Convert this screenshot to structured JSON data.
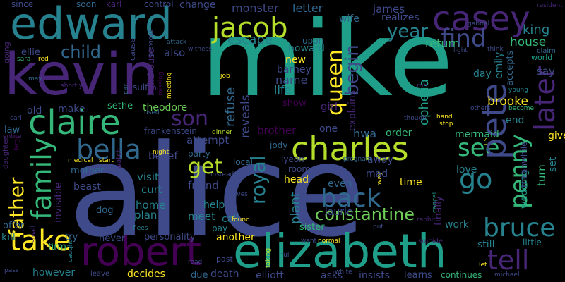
{
  "palette": {
    "deep_purple": "#440154",
    "purple": "#482677",
    "indigo": "#3e4a89",
    "blue": "#31688e",
    "teal": "#26828e",
    "green_teal": "#1f9e89",
    "green": "#35b779",
    "lime": "#6ece58",
    "yellow_green": "#b5de2b",
    "yellow": "#fde725"
  },
  "words": {
    "alice": "alice",
    "mike": "mike",
    "kevin": "kevin",
    "edward": "edward",
    "elizabeth": "elizabeth",
    "robert": "robert",
    "casey": "casey",
    "jacob": "jacob",
    "charles": "charles",
    "claire": "claire",
    "family": "family",
    "pete": "pete",
    "bella": "bella",
    "father": "father",
    "penny": "penny",
    "later": "later",
    "bruce": "bruce",
    "tell": "tell",
    "find": "find",
    "take": "take",
    "see": "see",
    "go": "go",
    "back": "back",
    "queen": "queen",
    "begin": "begin",
    "year": "year",
    "son": "son",
    "royal": "royal",
    "get": "get",
    "child": "child",
    "king": "king",
    "house": "house",
    "constantine": "constantine",
    "escape": "escape",
    "monster": "monster",
    "letter": "letter",
    "james": "james",
    "ophelia": "ophelia",
    "brooke": "brooke",
    "return": "return",
    "realizes": "realizes",
    "since": "since",
    "soon": "soon",
    "karl": "karl",
    "control": "control",
    "change": "change",
    "new": "new",
    "howard": "howard",
    "barney": "barney",
    "name": "name",
    "life": "life",
    "reveals": "reveals",
    "refuse": "refuse",
    "sethe": "sethe",
    "theodore": "theodore",
    "make": "make",
    "old": "old",
    "frankenstein": "frankenstein",
    "brother": "brother",
    "one": "one",
    "hwa": "hwa",
    "order": "order",
    "mermaid": "mermaid",
    "girl": "girl",
    "show": "show",
    "explains": "explains",
    "belief": "belief",
    "attempt": "attempt",
    "jody": "jody",
    "curt": "curt",
    "home": "home",
    "plan": "plan",
    "visit": "visit",
    "party": "party",
    "friend": "friend",
    "help": "help",
    "meet": "meet",
    "call": "call",
    "local": "local",
    "lyeon": "lyeon",
    "room": "room",
    "head": "head",
    "even": "even",
    "plant": "plant",
    "laurie": "laurie",
    "mad": "mad",
    "away": "away",
    "time": "time",
    "love": "love",
    "work": "work",
    "still": "still",
    "little": "little",
    "another": "another",
    "personality": "personality",
    "never": "never",
    "try": "try",
    "firm": "firm",
    "kill": "kill",
    "however": "however",
    "decides": "decides",
    "death": "death",
    "elliott": "elliott",
    "insists": "insists",
    "learns": "learns",
    "continues": "continues",
    "asks": "asks",
    "due": "due",
    "past": "past",
    "sister": "sister",
    "beast": "beast",
    "mother": "mother",
    "dog": "dog",
    "law": "law",
    "offer": "offer",
    "invisible": "invisible",
    "ellie": "ellie",
    "also": "also",
    "lighthouse": "lighthouse",
    "wife": "wife",
    "upon": "upon",
    "say": "say",
    "accepts": "accepts",
    "emily": "emily",
    "day": "day",
    "end": "end",
    "turn": "turn",
    "set": "set",
    "give": "give",
    "world": "world",
    "wedding": "wedding",
    "meanwhile": "meanwhile",
    "finally": "finally",
    "going": "going",
    "sara": "sara",
    "may": "may",
    "shortly": "shortly",
    "red": "red",
    "cause": "cause",
    "previous": "previous",
    "attack": "attack",
    "witness": "witness",
    "missing": "missing",
    "meeting": "meeting",
    "suit": "suit",
    "car": "car",
    "light": "light",
    "think": "think",
    "gabriel": "gabriel",
    "resident": "resident",
    "claim": "claim",
    "young": "young",
    "become": "become",
    "others": "others",
    "hand": "hand",
    "stop": "stop",
    "though": "though",
    "run": "run",
    "job": "job",
    "used": "used",
    "dinner": "dinner",
    "carl": "carl",
    "entire": "entire",
    "daughter": "daughter",
    "large": "large",
    "night": "night",
    "medical": "medical",
    "start": "start",
    "watch": "watch",
    "instead": "instead",
    "arrives": "arrives",
    "way": "way",
    "pregnant": "pregnant",
    "us": "us",
    "taking": "taking",
    "cancel": "cancel",
    "rabbit": "rabbit",
    "put": "put",
    "want": "want",
    "normal": "normal",
    "suicide": "suicide",
    "full": "full",
    "white": "white",
    "michael": "michael",
    "let": "let",
    "read": "read",
    "leave": "leave",
    "pass": "pass",
    "small": "small",
    "caught": "caught",
    "flees": "flees",
    "found": "found",
    "pay": "pay"
  }
}
